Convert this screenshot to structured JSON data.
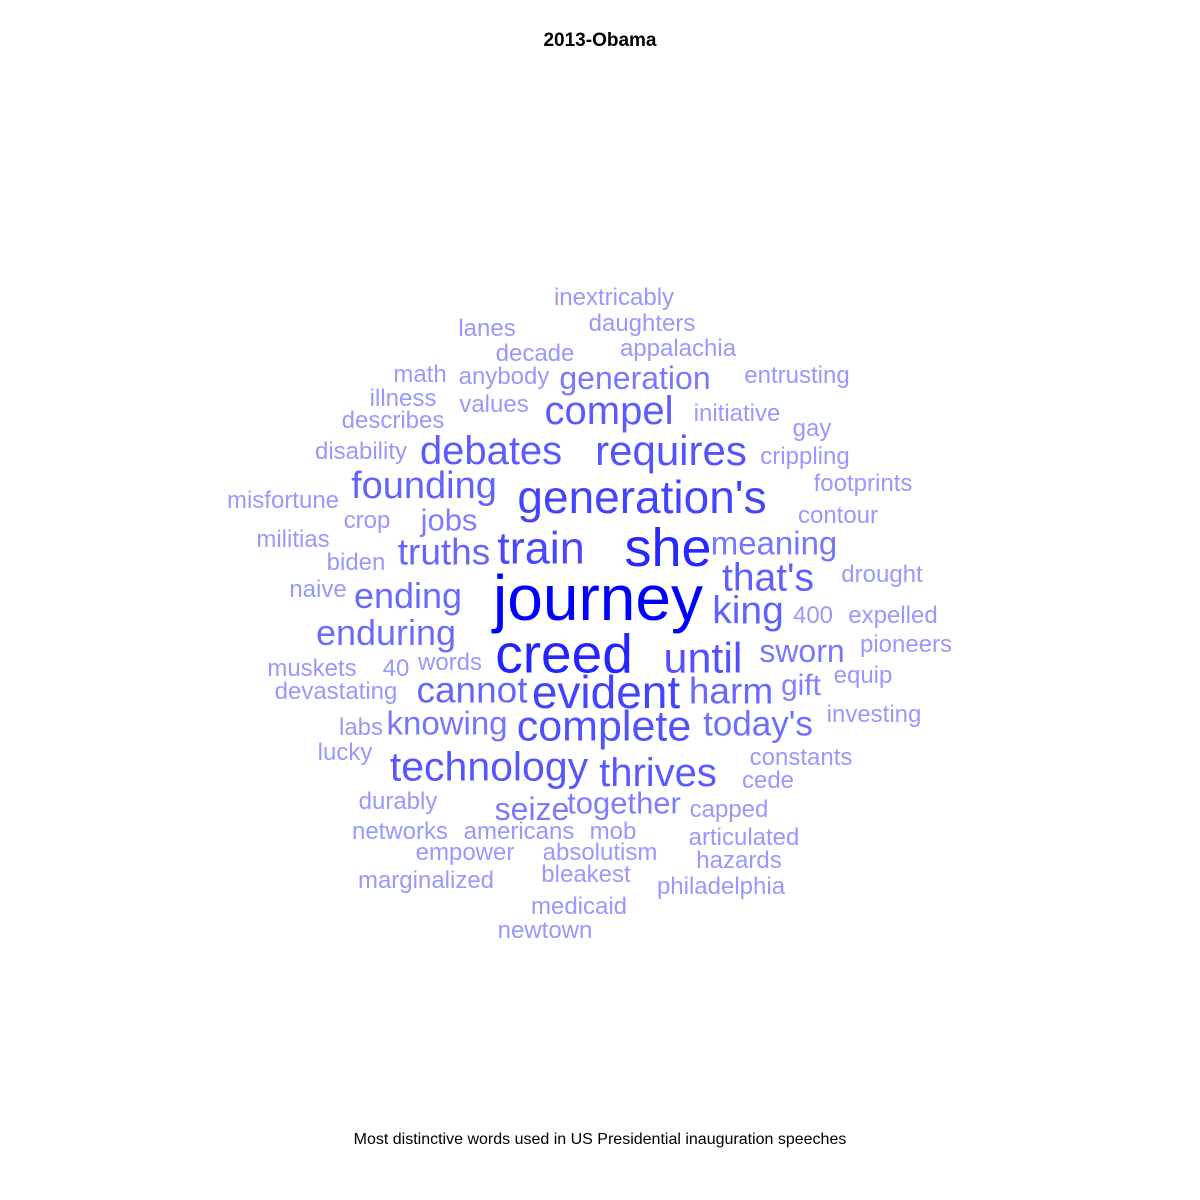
{
  "chart_data": {
    "type": "wordcloud",
    "title": "2013-Obama",
    "caption": "Most distinctive words used in US Presidential inauguration speeches",
    "colors": {
      "strongest": "#0000ff",
      "weakest": "#b3b3ff"
    },
    "words": [
      {
        "text": "journey",
        "weight": 1.0
      },
      {
        "text": "she",
        "weight": 0.78
      },
      {
        "text": "creed",
        "weight": 0.8
      },
      {
        "text": "generation's",
        "weight": 0.62
      },
      {
        "text": "evident",
        "weight": 0.62
      },
      {
        "text": "train",
        "weight": 0.6
      },
      {
        "text": "complete",
        "weight": 0.55
      },
      {
        "text": "until",
        "weight": 0.55
      },
      {
        "text": "requires",
        "weight": 0.53
      },
      {
        "text": "technology",
        "weight": 0.52
      },
      {
        "text": "thrives",
        "weight": 0.5
      },
      {
        "text": "compel",
        "weight": 0.49
      },
      {
        "text": "debates",
        "weight": 0.49
      },
      {
        "text": "that's",
        "weight": 0.47
      },
      {
        "text": "king",
        "weight": 0.46
      },
      {
        "text": "founding",
        "weight": 0.45
      },
      {
        "text": "cannot",
        "weight": 0.43
      },
      {
        "text": "truths",
        "weight": 0.43
      },
      {
        "text": "harm",
        "weight": 0.42
      },
      {
        "text": "ending",
        "weight": 0.41
      },
      {
        "text": "enduring",
        "weight": 0.4
      },
      {
        "text": "today's",
        "weight": 0.38
      },
      {
        "text": "meaning",
        "weight": 0.34
      },
      {
        "text": "knowing",
        "weight": 0.34
      },
      {
        "text": "sworn",
        "weight": 0.33
      },
      {
        "text": "generation",
        "weight": 0.33
      },
      {
        "text": "seize",
        "weight": 0.32
      },
      {
        "text": "jobs",
        "weight": 0.3
      },
      {
        "text": "together",
        "weight": 0.3
      },
      {
        "text": "gift",
        "weight": 0.28
      },
      {
        "text": "inextricably",
        "weight": 0.15
      },
      {
        "text": "lanes",
        "weight": 0.15
      },
      {
        "text": "daughters",
        "weight": 0.15
      },
      {
        "text": "decade",
        "weight": 0.15
      },
      {
        "text": "appalachia",
        "weight": 0.15
      },
      {
        "text": "math",
        "weight": 0.15
      },
      {
        "text": "anybody",
        "weight": 0.15
      },
      {
        "text": "entrusting",
        "weight": 0.15
      },
      {
        "text": "illness",
        "weight": 0.15
      },
      {
        "text": "values",
        "weight": 0.15
      },
      {
        "text": "initiative",
        "weight": 0.15
      },
      {
        "text": "describes",
        "weight": 0.15
      },
      {
        "text": "gay",
        "weight": 0.15
      },
      {
        "text": "disability",
        "weight": 0.15
      },
      {
        "text": "crippling",
        "weight": 0.15
      },
      {
        "text": "footprints",
        "weight": 0.15
      },
      {
        "text": "misfortune",
        "weight": 0.15
      },
      {
        "text": "crop",
        "weight": 0.15
      },
      {
        "text": "contour",
        "weight": 0.15
      },
      {
        "text": "militias",
        "weight": 0.15
      },
      {
        "text": "biden",
        "weight": 0.15
      },
      {
        "text": "drought",
        "weight": 0.15
      },
      {
        "text": "naive",
        "weight": 0.15
      },
      {
        "text": "400",
        "weight": 0.15
      },
      {
        "text": "expelled",
        "weight": 0.15
      },
      {
        "text": "pioneers",
        "weight": 0.15
      },
      {
        "text": "muskets",
        "weight": 0.15
      },
      {
        "text": "40",
        "weight": 0.15
      },
      {
        "text": "words",
        "weight": 0.15
      },
      {
        "text": "equip",
        "weight": 0.15
      },
      {
        "text": "devastating",
        "weight": 0.15
      },
      {
        "text": "labs",
        "weight": 0.15
      },
      {
        "text": "investing",
        "weight": 0.15
      },
      {
        "text": "lucky",
        "weight": 0.15
      },
      {
        "text": "constants",
        "weight": 0.15
      },
      {
        "text": "cede",
        "weight": 0.15
      },
      {
        "text": "durably",
        "weight": 0.15
      },
      {
        "text": "capped",
        "weight": 0.15
      },
      {
        "text": "networks",
        "weight": 0.15
      },
      {
        "text": "americans",
        "weight": 0.15
      },
      {
        "text": "mob",
        "weight": 0.15
      },
      {
        "text": "articulated",
        "weight": 0.15
      },
      {
        "text": "empower",
        "weight": 0.15
      },
      {
        "text": "absolutism",
        "weight": 0.15
      },
      {
        "text": "hazards",
        "weight": 0.15
      },
      {
        "text": "marginalized",
        "weight": 0.15
      },
      {
        "text": "bleakest",
        "weight": 0.15
      },
      {
        "text": "philadelphia",
        "weight": 0.15
      },
      {
        "text": "medicaid",
        "weight": 0.15
      },
      {
        "text": "newtown",
        "weight": 0.15
      }
    ]
  }
}
